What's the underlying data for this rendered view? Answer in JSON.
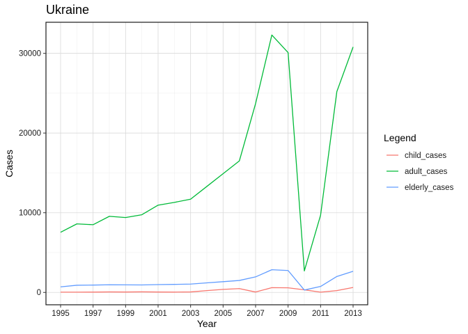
{
  "chart_data": {
    "type": "line",
    "title": "Ukraine",
    "xlabel": "Year",
    "ylabel": "Cases",
    "x": [
      1995,
      1996,
      1997,
      1998,
      1999,
      2000,
      2001,
      2002,
      2003,
      2004,
      2005,
      2006,
      2007,
      2008,
      2009,
      2010,
      2011,
      2012,
      2013
    ],
    "x_ticks": [
      "1995",
      "1997",
      "1999",
      "2001",
      "2003",
      "2005",
      "2007",
      "2009",
      "2011",
      "2013"
    ],
    "y_ticks": [
      "0",
      "10000",
      "20000",
      "30000"
    ],
    "xlim": [
      1994.1,
      2013.9
    ],
    "ylim": [
      -1550,
      33900
    ],
    "grid": true,
    "legend_title": "Legend",
    "legend_position": "right",
    "series": [
      {
        "name": "child_cases",
        "color": "#F8766D",
        "values": [
          30,
          30,
          40,
          60,
          50,
          70,
          50,
          40,
          60,
          230,
          380,
          480,
          50,
          600,
          580,
          330,
          30,
          230,
          620
        ]
      },
      {
        "name": "adult_cases",
        "color": "#00BA38",
        "values": [
          7550,
          8600,
          8500,
          9550,
          9400,
          9750,
          10950,
          11300,
          11700,
          13300,
          14900,
          16500,
          23700,
          32300,
          30100,
          2700,
          9700,
          25200,
          30800
        ]
      },
      {
        "name": "elderly_cases",
        "color": "#619CFF",
        "values": [
          700,
          900,
          920,
          960,
          950,
          940,
          980,
          1010,
          1050,
          1200,
          1350,
          1500,
          1950,
          2850,
          2750,
          300,
          750,
          2000,
          2650
        ]
      }
    ]
  }
}
